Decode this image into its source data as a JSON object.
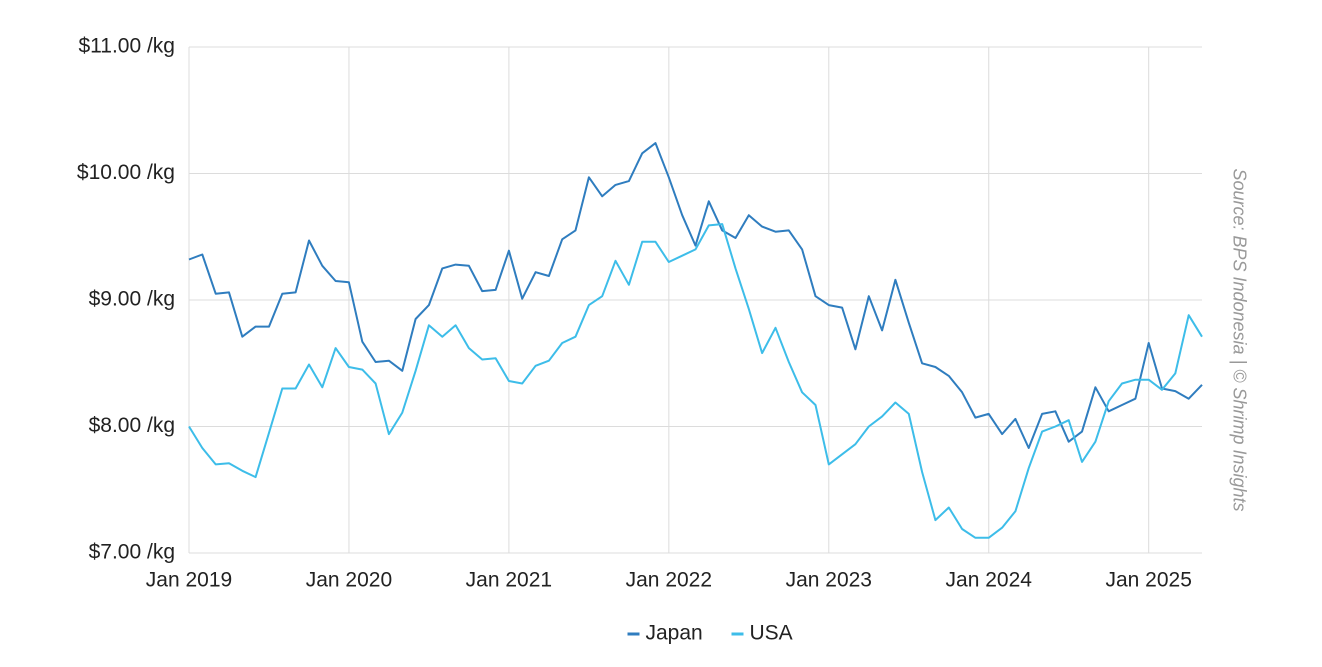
{
  "chart_data": {
    "type": "line",
    "annotation": "Source: BPS Indonesia | © Shrimp Insights",
    "x": [
      "2019-01",
      "2019-02",
      "2019-03",
      "2019-04",
      "2019-05",
      "2019-06",
      "2019-07",
      "2019-08",
      "2019-09",
      "2019-10",
      "2019-11",
      "2019-12",
      "2020-01",
      "2020-02",
      "2020-03",
      "2020-04",
      "2020-05",
      "2020-06",
      "2020-07",
      "2020-08",
      "2020-09",
      "2020-10",
      "2020-11",
      "2020-12",
      "2021-01",
      "2021-02",
      "2021-03",
      "2021-04",
      "2021-05",
      "2021-06",
      "2021-07",
      "2021-08",
      "2021-09",
      "2021-10",
      "2021-11",
      "2021-12",
      "2022-01",
      "2022-02",
      "2022-03",
      "2022-04",
      "2022-05",
      "2022-06",
      "2022-07",
      "2022-08",
      "2022-09",
      "2022-10",
      "2022-11",
      "2022-12",
      "2023-01",
      "2023-02",
      "2023-03",
      "2023-04",
      "2023-05",
      "2023-06",
      "2023-07",
      "2023-08",
      "2023-09",
      "2023-10",
      "2023-11",
      "2023-12",
      "2024-01",
      "2024-02",
      "2024-03",
      "2024-04",
      "2024-05",
      "2024-06",
      "2024-07",
      "2024-08",
      "2024-09",
      "2024-10",
      "2024-11",
      "2024-12",
      "2025-01",
      "2025-02",
      "2025-03",
      "2025-04",
      "2025-05"
    ],
    "series": [
      {
        "name": "Japan",
        "color": "#2f7dbf",
        "values": [
          9.32,
          9.36,
          9.05,
          9.06,
          8.71,
          8.79,
          8.79,
          9.05,
          9.06,
          9.47,
          9.27,
          9.15,
          9.14,
          8.67,
          8.51,
          8.52,
          8.44,
          8.85,
          8.96,
          9.25,
          9.28,
          9.27,
          9.07,
          9.08,
          9.39,
          9.01,
          9.22,
          9.19,
          9.48,
          9.55,
          9.97,
          9.82,
          9.91,
          9.94,
          10.16,
          10.24,
          9.97,
          9.67,
          9.43,
          9.78,
          9.55,
          9.49,
          9.67,
          9.58,
          9.54,
          9.55,
          9.4,
          9.03,
          8.96,
          8.94,
          8.61,
          9.03,
          8.76,
          9.16,
          8.82,
          8.5,
          8.47,
          8.4,
          8.27,
          8.07,
          8.1,
          7.94,
          8.06,
          7.83,
          8.1,
          8.12,
          7.88,
          7.96,
          8.31,
          8.12,
          8.17,
          8.22,
          8.66,
          8.3,
          8.28,
          8.22,
          8.33
        ]
      },
      {
        "name": "USA",
        "color": "#3dbde9",
        "values": [
          8.0,
          7.83,
          7.7,
          7.71,
          7.65,
          7.6,
          7.95,
          8.3,
          8.3,
          8.49,
          8.31,
          8.62,
          8.47,
          8.45,
          8.34,
          7.94,
          8.11,
          8.44,
          8.8,
          8.71,
          8.8,
          8.62,
          8.53,
          8.54,
          8.36,
          8.34,
          8.48,
          8.52,
          8.66,
          8.71,
          8.96,
          9.03,
          9.31,
          9.12,
          9.46,
          9.46,
          9.3,
          9.35,
          9.4,
          9.59,
          9.6,
          9.25,
          8.93,
          8.58,
          8.78,
          8.51,
          8.27,
          8.17,
          7.7,
          7.78,
          7.86,
          8.0,
          8.08,
          8.19,
          8.1,
          7.64,
          7.26,
          7.36,
          7.19,
          7.12,
          7.12,
          7.2,
          7.33,
          7.67,
          7.96,
          8.0,
          8.05,
          7.72,
          7.88,
          8.2,
          8.34,
          8.37,
          8.37,
          8.29,
          8.42,
          8.88,
          8.71
        ]
      }
    ],
    "xlim": [
      "2019-01",
      "2025-05"
    ],
    "xticks": [
      {
        "value": "2019-01",
        "label": "Jan 2019"
      },
      {
        "value": "2020-01",
        "label": "Jan 2020"
      },
      {
        "value": "2021-01",
        "label": "Jan 2021"
      },
      {
        "value": "2022-01",
        "label": "Jan 2022"
      },
      {
        "value": "2023-01",
        "label": "Jan 2023"
      },
      {
        "value": "2024-01",
        "label": "Jan 2024"
      },
      {
        "value": "2025-01",
        "label": "Jan 2025"
      }
    ],
    "ylim": [
      7,
      11
    ],
    "yticks": [
      {
        "value": 7,
        "label": "$7.00 /kg"
      },
      {
        "value": 8,
        "label": "$8.00 /kg"
      },
      {
        "value": 9,
        "label": "$9.00 /kg"
      },
      {
        "value": 10,
        "label": "$10.00 /kg"
      },
      {
        "value": 11,
        "label": "$11.00 /kg"
      }
    ],
    "grid": true,
    "legend": "bottom"
  }
}
